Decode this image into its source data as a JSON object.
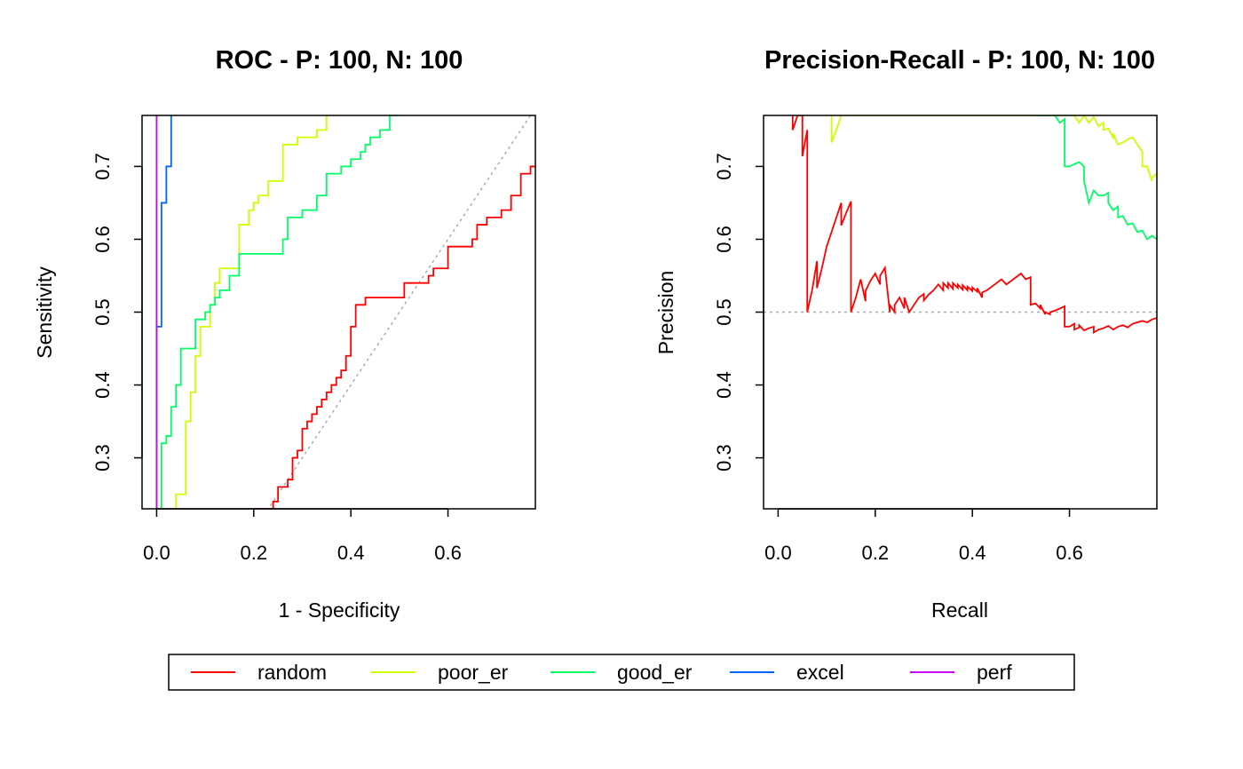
{
  "colors": {
    "random": "#FF0000",
    "poor_er": "#CCFF00",
    "good_er": "#00FF66",
    "excel": "#0066FF",
    "perf": "#CC00FF",
    "reference": "#AAAAAA"
  },
  "legend": {
    "entries": [
      {
        "key": "random",
        "label": "random"
      },
      {
        "key": "poor_er",
        "label": "poor_er"
      },
      {
        "key": "good_er",
        "label": "good_er"
      },
      {
        "key": "excel",
        "label": "excel"
      },
      {
        "key": "perf",
        "label": "perf"
      }
    ],
    "placement": "bottom"
  },
  "chart_data": [
    {
      "type": "line",
      "title": "ROC - P: 100, N: 100",
      "xlabel": "1 - Specificity",
      "ylabel": "Sensitivity",
      "xlim": [
        -0.03,
        0.78
      ],
      "ylim": [
        0.23,
        0.77
      ],
      "xticks": [
        0.0,
        0.2,
        0.4,
        0.6
      ],
      "xticklabels": [
        "0.0",
        "0.2",
        "0.4",
        "0.6"
      ],
      "yticks": [
        0.3,
        0.4,
        0.5,
        0.6,
        0.7
      ],
      "yticklabels": [
        "0.3",
        "0.4",
        "0.5",
        "0.6",
        "0.7"
      ],
      "reference_line": {
        "type": "diagonal",
        "x": [
          0,
          1
        ],
        "y": [
          0,
          1
        ]
      },
      "series": [
        {
          "name": "random",
          "step": true,
          "x": [
            0.2,
            0.23,
            0.24,
            0.24,
            0.25,
            0.25,
            0.27,
            0.27,
            0.28,
            0.28,
            0.29,
            0.29,
            0.3,
            0.3,
            0.31,
            0.31,
            0.32,
            0.32,
            0.33,
            0.33,
            0.34,
            0.34,
            0.35,
            0.35,
            0.36,
            0.36,
            0.37,
            0.37,
            0.38,
            0.38,
            0.39,
            0.39,
            0.4,
            0.4,
            0.41,
            0.41,
            0.42,
            0.42,
            0.43,
            0.43,
            0.46,
            0.46,
            0.51,
            0.51,
            0.55,
            0.55,
            0.56,
            0.56,
            0.57,
            0.57,
            0.6,
            0.6,
            0.63,
            0.63,
            0.65,
            0.65,
            0.66,
            0.66,
            0.68,
            0.68,
            0.71,
            0.71,
            0.73,
            0.73,
            0.75,
            0.75,
            0.77,
            0.77,
            0.78
          ],
          "y": [
            0.23,
            0.23,
            0.23,
            0.24,
            0.24,
            0.26,
            0.26,
            0.27,
            0.27,
            0.3,
            0.3,
            0.31,
            0.31,
            0.34,
            0.34,
            0.35,
            0.35,
            0.36,
            0.36,
            0.37,
            0.37,
            0.38,
            0.38,
            0.39,
            0.39,
            0.4,
            0.4,
            0.41,
            0.41,
            0.42,
            0.42,
            0.44,
            0.44,
            0.48,
            0.48,
            0.51,
            0.51,
            0.51,
            0.51,
            0.52,
            0.52,
            0.52,
            0.52,
            0.54,
            0.54,
            0.54,
            0.54,
            0.55,
            0.55,
            0.56,
            0.56,
            0.59,
            0.59,
            0.59,
            0.59,
            0.6,
            0.6,
            0.62,
            0.62,
            0.63,
            0.63,
            0.64,
            0.64,
            0.66,
            0.66,
            0.69,
            0.69,
            0.7,
            0.7
          ]
        },
        {
          "name": "poor_er",
          "step": true,
          "x": [
            0.04,
            0.04,
            0.06,
            0.06,
            0.07,
            0.07,
            0.08,
            0.08,
            0.09,
            0.09,
            0.11,
            0.11,
            0.12,
            0.12,
            0.13,
            0.13,
            0.14,
            0.14,
            0.17,
            0.17,
            0.18,
            0.18,
            0.19,
            0.19,
            0.2,
            0.2,
            0.21,
            0.21,
            0.23,
            0.23,
            0.25,
            0.25,
            0.26,
            0.26,
            0.28,
            0.28,
            0.29,
            0.29,
            0.33,
            0.33,
            0.35,
            0.35
          ],
          "y": [
            0.23,
            0.25,
            0.25,
            0.35,
            0.35,
            0.39,
            0.39,
            0.44,
            0.44,
            0.48,
            0.48,
            0.51,
            0.51,
            0.54,
            0.54,
            0.56,
            0.56,
            0.56,
            0.56,
            0.62,
            0.62,
            0.62,
            0.62,
            0.64,
            0.64,
            0.65,
            0.65,
            0.66,
            0.66,
            0.68,
            0.68,
            0.68,
            0.68,
            0.73,
            0.73,
            0.73,
            0.73,
            0.74,
            0.74,
            0.75,
            0.75,
            0.77
          ]
        },
        {
          "name": "good_er",
          "step": true,
          "x": [
            0.01,
            0.01,
            0.02,
            0.02,
            0.03,
            0.03,
            0.04,
            0.04,
            0.05,
            0.05,
            0.08,
            0.08,
            0.1,
            0.1,
            0.11,
            0.11,
            0.12,
            0.12,
            0.13,
            0.13,
            0.14,
            0.14,
            0.15,
            0.15,
            0.17,
            0.17,
            0.26,
            0.26,
            0.27,
            0.27,
            0.28,
            0.28,
            0.3,
            0.3,
            0.33,
            0.33,
            0.35,
            0.35,
            0.38,
            0.38,
            0.4,
            0.4,
            0.41,
            0.41,
            0.42,
            0.42,
            0.43,
            0.43,
            0.44,
            0.44,
            0.46,
            0.46,
            0.48,
            0.48,
            0.5,
            0.5
          ],
          "y": [
            0.23,
            0.32,
            0.32,
            0.33,
            0.33,
            0.37,
            0.37,
            0.4,
            0.4,
            0.45,
            0.45,
            0.49,
            0.49,
            0.5,
            0.5,
            0.51,
            0.51,
            0.52,
            0.52,
            0.53,
            0.53,
            0.53,
            0.53,
            0.55,
            0.55,
            0.58,
            0.58,
            0.6,
            0.6,
            0.63,
            0.63,
            0.63,
            0.63,
            0.64,
            0.64,
            0.66,
            0.66,
            0.69,
            0.69,
            0.7,
            0.7,
            0.71,
            0.71,
            0.71,
            0.71,
            0.72,
            0.72,
            0.73,
            0.73,
            0.74,
            0.74,
            0.75,
            0.75,
            0.77,
            0.77,
            0.77
          ]
        },
        {
          "name": "excel",
          "step": true,
          "x": [
            0.0,
            0.0,
            0.01,
            0.01,
            0.02,
            0.02,
            0.03,
            0.03
          ],
          "y": [
            0.23,
            0.48,
            0.48,
            0.65,
            0.65,
            0.7,
            0.7,
            0.77
          ]
        },
        {
          "name": "perf",
          "step": true,
          "x": [
            0.0,
            0.0
          ],
          "y": [
            0.23,
            0.77
          ]
        }
      ]
    },
    {
      "type": "line",
      "title": "Precision-Recall - P: 100, N: 100",
      "xlabel": "Recall",
      "ylabel": "Precision",
      "xlim": [
        -0.03,
        0.78
      ],
      "ylim": [
        0.23,
        0.77
      ],
      "xticks": [
        0.0,
        0.2,
        0.4,
        0.6
      ],
      "xticklabels": [
        "0.0",
        "0.2",
        "0.4",
        "0.6"
      ],
      "yticks": [
        0.3,
        0.4,
        0.5,
        0.6,
        0.7
      ],
      "yticklabels": [
        "0.3",
        "0.4",
        "0.5",
        "0.6",
        "0.7"
      ],
      "reference_line": {
        "type": "horizontal",
        "y": 0.5
      },
      "series": [
        {
          "name": "random",
          "step": false,
          "x": [
            0.03,
            0.03,
            0.04,
            0.05,
            0.05,
            0.06,
            0.06,
            0.07,
            0.08,
            0.08,
            0.09,
            0.1,
            0.11,
            0.12,
            0.13,
            0.13,
            0.14,
            0.15,
            0.15,
            0.16,
            0.17,
            0.18,
            0.18,
            0.19,
            0.2,
            0.21,
            0.21,
            0.22,
            0.23,
            0.23,
            0.24,
            0.24,
            0.25,
            0.26,
            0.26,
            0.27,
            0.28,
            0.29,
            0.3,
            0.3,
            0.31,
            0.32,
            0.33,
            0.34,
            0.34,
            0.35,
            0.35,
            0.36,
            0.36,
            0.37,
            0.37,
            0.38,
            0.38,
            0.39,
            0.39,
            0.4,
            0.4,
            0.41,
            0.41,
            0.42,
            0.42,
            0.43,
            0.44,
            0.45,
            0.46,
            0.47,
            0.48,
            0.49,
            0.5,
            0.51,
            0.52,
            0.52,
            0.53,
            0.54,
            0.54,
            0.55,
            0.55,
            0.56,
            0.56,
            0.57,
            0.58,
            0.59,
            0.59,
            0.6,
            0.61,
            0.61,
            0.62,
            0.62,
            0.63,
            0.64,
            0.65,
            0.65,
            0.66,
            0.67,
            0.68,
            0.69,
            0.7,
            0.71,
            0.72,
            0.73,
            0.74,
            0.75,
            0.76,
            0.77,
            0.78
          ],
          "y": [
            0.77,
            0.75,
            0.77,
            0.77,
            0.714,
            0.75,
            0.5,
            0.53,
            0.57,
            0.533,
            0.56,
            0.59,
            0.61,
            0.63,
            0.65,
            0.619,
            0.636,
            0.652,
            0.5,
            0.52,
            0.545,
            0.515,
            0.529,
            0.543,
            0.553,
            0.538,
            0.55,
            0.561,
            0.5,
            0.51,
            0.5,
            0.51,
            0.52,
            0.505,
            0.52,
            0.5,
            0.51,
            0.52,
            0.525,
            0.516,
            0.524,
            0.53,
            0.538,
            0.53,
            0.54,
            0.533,
            0.54,
            0.532,
            0.54,
            0.533,
            0.538,
            0.531,
            0.537,
            0.53,
            0.535,
            0.529,
            0.534,
            0.528,
            0.533,
            0.52,
            0.527,
            0.53,
            0.535,
            0.54,
            0.545,
            0.538,
            0.543,
            0.548,
            0.553,
            0.545,
            0.548,
            0.51,
            0.512,
            0.505,
            0.51,
            0.497,
            0.5,
            0.497,
            0.5,
            0.502,
            0.505,
            0.508,
            0.48,
            0.48,
            0.484,
            0.476,
            0.479,
            0.482,
            0.475,
            0.478,
            0.48,
            0.472,
            0.476,
            0.478,
            0.481,
            0.476,
            0.48,
            0.482,
            0.479,
            0.484,
            0.486,
            0.488,
            0.486,
            0.49,
            0.492
          ]
        },
        {
          "name": "poor_er",
          "step": false,
          "x": [
            0.11,
            0.11,
            0.12,
            0.13,
            0.61,
            0.62,
            0.63,
            0.64,
            0.65,
            0.66,
            0.67,
            0.67,
            0.68,
            0.69,
            0.69,
            0.7,
            0.71,
            0.72,
            0.73,
            0.74,
            0.75,
            0.75,
            0.76,
            0.77,
            0.77,
            0.78
          ],
          "y": [
            0.77,
            0.733,
            0.75,
            0.77,
            0.77,
            0.76,
            0.77,
            0.76,
            0.768,
            0.755,
            0.76,
            0.75,
            0.752,
            0.74,
            0.745,
            0.73,
            0.733,
            0.737,
            0.74,
            0.73,
            0.72,
            0.7,
            0.7,
            0.68,
            0.685,
            0.69
          ]
        },
        {
          "name": "good_er",
          "step": false,
          "x": [
            0.53,
            0.57,
            0.58,
            0.59,
            0.59,
            0.6,
            0.61,
            0.62,
            0.63,
            0.63,
            0.64,
            0.65,
            0.66,
            0.67,
            0.68,
            0.68,
            0.69,
            0.7,
            0.7,
            0.71,
            0.72,
            0.73,
            0.74,
            0.75,
            0.76,
            0.77,
            0.78
          ],
          "y": [
            0.77,
            0.77,
            0.76,
            0.765,
            0.7,
            0.7,
            0.703,
            0.706,
            0.7,
            0.68,
            0.65,
            0.667,
            0.66,
            0.66,
            0.664,
            0.65,
            0.64,
            0.645,
            0.63,
            0.632,
            0.62,
            0.622,
            0.61,
            0.612,
            0.6,
            0.605,
            0.6
          ]
        }
      ]
    }
  ]
}
